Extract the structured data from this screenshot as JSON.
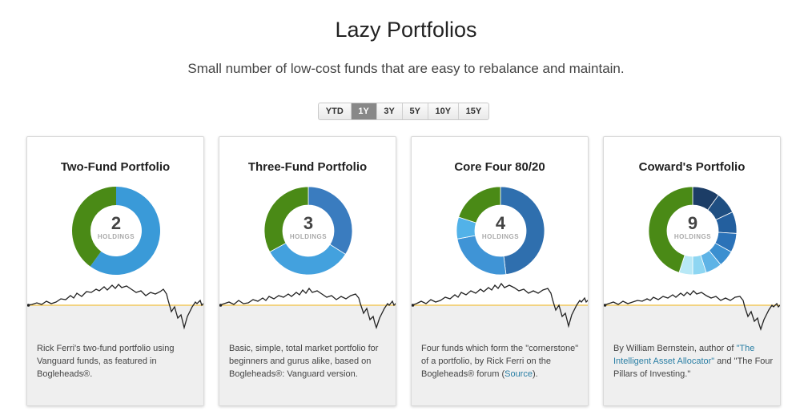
{
  "header": {
    "title": "Lazy Portfolios",
    "subtitle": "Small number of low-cost funds that are easy to rebalance and maintain."
  },
  "range": {
    "options": [
      "YTD",
      "1Y",
      "3Y",
      "5Y",
      "10Y",
      "15Y"
    ],
    "selected": "1Y"
  },
  "holdings_label": "HOLDINGS",
  "colors": {
    "green": "#4a8a16",
    "baseline": "#f0c040",
    "sparkline": "#222222",
    "link": "#2a7fa5"
  },
  "cards": [
    {
      "title": "Two-Fund Portfolio",
      "holdings": "2",
      "slices": [
        {
          "share": 0.6,
          "color": "#3a9ad8"
        },
        {
          "share": 0.4,
          "color": "#4a8a16"
        }
      ],
      "desc_text": "Rick Ferri's two-fund portfolio using Vanguard funds, as featured in Bogleheads®."
    },
    {
      "title": "Three-Fund Portfolio",
      "holdings": "3",
      "slices": [
        {
          "share": 0.34,
          "color": "#3a7cbf"
        },
        {
          "share": 0.33,
          "color": "#43a1de"
        },
        {
          "share": 0.33,
          "color": "#4a8a16"
        }
      ],
      "desc_text": "Basic, simple, total market portfolio for beginners and gurus alike, based on Bogleheads®: Vanguard version."
    },
    {
      "title": "Core Four 80/20",
      "holdings": "4",
      "slices": [
        {
          "share": 0.48,
          "color": "#2f6fae"
        },
        {
          "share": 0.24,
          "color": "#3f94d6"
        },
        {
          "share": 0.08,
          "color": "#52b2e8"
        },
        {
          "share": 0.2,
          "color": "#4a8a16"
        }
      ],
      "desc_pre": "Four funds which form the \"cornerstone\" of a portfolio, by Rick Ferri on the Bogleheads® forum (",
      "desc_link": "Source",
      "desc_post": ")."
    },
    {
      "title": "Coward's Portfolio",
      "holdings": "9",
      "slices": [
        {
          "share": 0.1,
          "color": "#1c3d66"
        },
        {
          "share": 0.08,
          "color": "#1f4f82"
        },
        {
          "share": 0.08,
          "color": "#235f9e"
        },
        {
          "share": 0.07,
          "color": "#2b72b8"
        },
        {
          "share": 0.06,
          "color": "#3b8fd0"
        },
        {
          "share": 0.06,
          "color": "#5eb3e6"
        },
        {
          "share": 0.05,
          "color": "#8ed6f2"
        },
        {
          "share": 0.05,
          "color": "#b8e8f6"
        },
        {
          "share": 0.45,
          "color": "#4a8a16"
        }
      ],
      "desc_pre": "By William Bernstein, author of ",
      "desc_link": "\"The Intelligent Asset Allocator\"",
      "desc_post": " and \"The Four Pillars of Investing.\""
    }
  ]
}
